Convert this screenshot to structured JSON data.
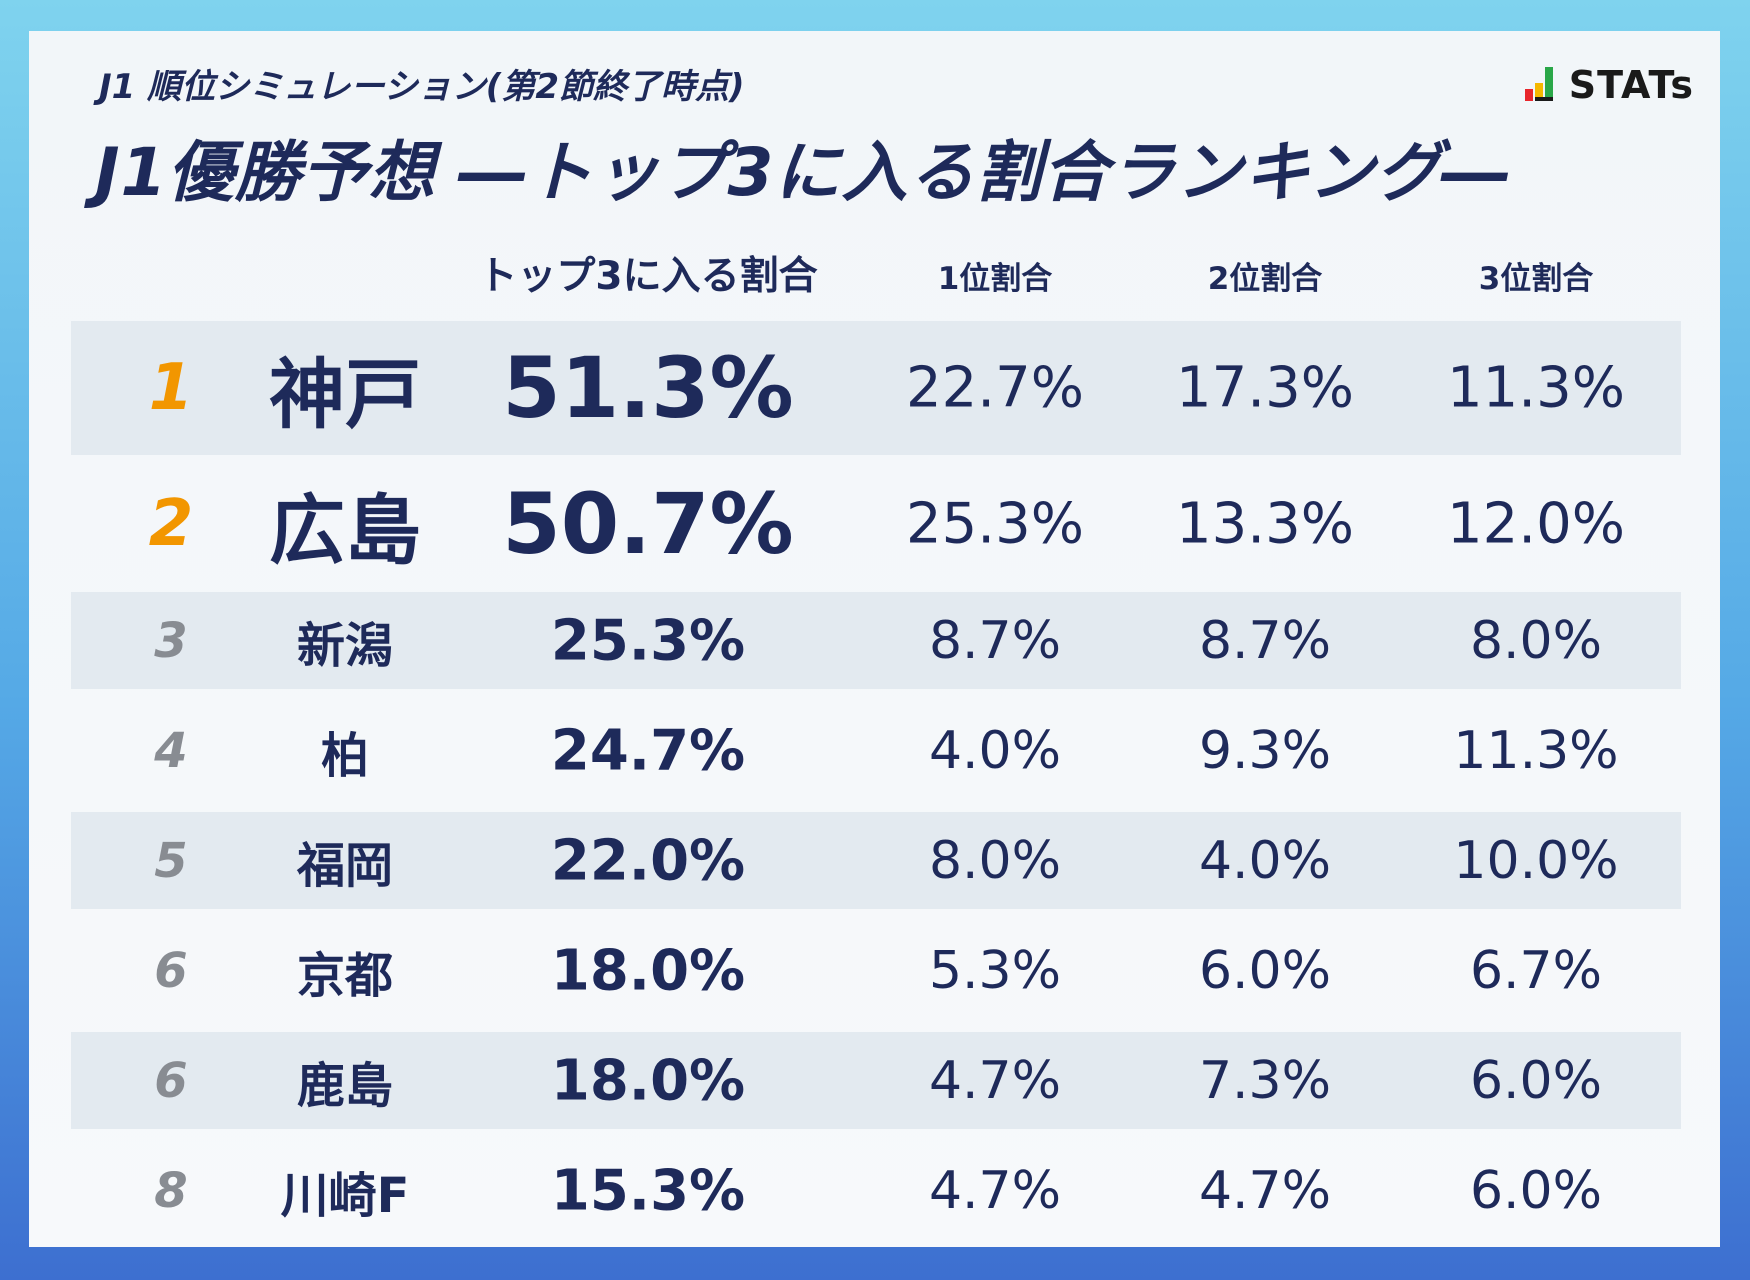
{
  "subtitle": "J1 順位シミュレーション(第2節終了時点)",
  "title": "J1優勝予想 ―トップ3に入る割合ランキング―",
  "logo": {
    "text": "STATs",
    "icon": "bar-chart-logo-icon",
    "colors": [
      "#e8262c",
      "#f5b800",
      "#2aa748",
      "#1a1a1a"
    ]
  },
  "colors": {
    "text": "#1e2a5a",
    "rank_top": "#f29600",
    "rank_other": "#888c92",
    "row_shade": "#e3eaf0"
  },
  "chart_data": {
    "type": "table",
    "columns": [
      "",
      "",
      "トップ3に入る割合",
      "1位割合",
      "2位割合",
      "3位割合"
    ],
    "rows": [
      {
        "rank": "1",
        "team": "神戸",
        "top3": "51.3%",
        "p1": "22.7%",
        "p2": "17.3%",
        "p3": "11.3%"
      },
      {
        "rank": "2",
        "team": "広島",
        "top3": "50.7%",
        "p1": "25.3%",
        "p2": "13.3%",
        "p3": "12.0%"
      },
      {
        "rank": "3",
        "team": "新潟",
        "top3": "25.3%",
        "p1": "8.7%",
        "p2": "8.7%",
        "p3": "8.0%"
      },
      {
        "rank": "4",
        "team": "柏",
        "top3": "24.7%",
        "p1": "4.0%",
        "p2": "9.3%",
        "p3": "11.3%"
      },
      {
        "rank": "5",
        "team": "福岡",
        "top3": "22.0%",
        "p1": "8.0%",
        "p2": "4.0%",
        "p3": "10.0%"
      },
      {
        "rank": "6",
        "team": "京都",
        "top3": "18.0%",
        "p1": "5.3%",
        "p2": "6.0%",
        "p3": "6.7%"
      },
      {
        "rank": "6",
        "team": "鹿島",
        "top3": "18.0%",
        "p1": "4.7%",
        "p2": "7.3%",
        "p3": "6.0%"
      },
      {
        "rank": "8",
        "team": "川崎F",
        "top3": "15.3%",
        "p1": "4.7%",
        "p2": "4.7%",
        "p3": "6.0%"
      }
    ]
  }
}
